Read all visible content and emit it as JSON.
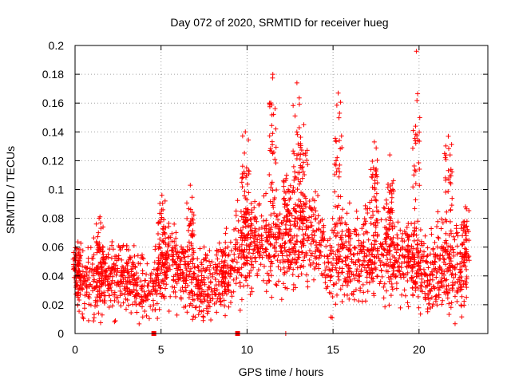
{
  "chart_data": {
    "type": "scatter",
    "title": "Day 072 of 2020, SRMTID for receiver hueg",
    "xlabel": "GPS time / hours",
    "ylabel": "SRMTID / TECUs",
    "xlim": [
      0,
      24
    ],
    "ylim": [
      0,
      0.2
    ],
    "xticks": [
      0,
      5,
      10,
      15,
      20
    ],
    "xtick_labels": [
      "0",
      "5",
      "10",
      "15",
      "20"
    ],
    "yticks": [
      0,
      0.02,
      0.04,
      0.06,
      0.08,
      0.1,
      0.12,
      0.14,
      0.16,
      0.18,
      0.2
    ],
    "ytick_labels": [
      "0",
      "0.02",
      "0.04",
      "0.06",
      "0.08",
      "0.1",
      "0.12",
      "0.14",
      "0.16",
      "0.18",
      "0.2"
    ],
    "grid": true,
    "marker_color": "#ff0000",
    "series": [
      {
        "name": "SRMTID",
        "marker": "plus",
        "profile": [
          {
            "t": 0.0,
            "mean": 0.036,
            "spread": 0.022
          },
          {
            "t": 1.0,
            "mean": 0.038,
            "spread": 0.026
          },
          {
            "t": 2.0,
            "mean": 0.037,
            "spread": 0.024
          },
          {
            "t": 3.0,
            "mean": 0.036,
            "spread": 0.025
          },
          {
            "t": 4.0,
            "mean": 0.034,
            "spread": 0.024
          },
          {
            "t": 4.5,
            "mean": 0.028,
            "spread": 0.018
          },
          {
            "t": 5.0,
            "mean": 0.043,
            "spread": 0.024
          },
          {
            "t": 5.5,
            "mean": 0.052,
            "spread": 0.026
          },
          {
            "t": 6.0,
            "mean": 0.046,
            "spread": 0.026
          },
          {
            "t": 6.5,
            "mean": 0.038,
            "spread": 0.026
          },
          {
            "t": 7.0,
            "mean": 0.035,
            "spread": 0.024
          },
          {
            "t": 8.0,
            "mean": 0.033,
            "spread": 0.024
          },
          {
            "t": 9.0,
            "mean": 0.046,
            "spread": 0.026
          },
          {
            "t": 9.5,
            "mean": 0.055,
            "spread": 0.028
          },
          {
            "t": 10.0,
            "mean": 0.062,
            "spread": 0.03
          },
          {
            "t": 11.0,
            "mean": 0.064,
            "spread": 0.03
          },
          {
            "t": 12.0,
            "mean": 0.06,
            "spread": 0.032
          },
          {
            "t": 13.0,
            "mean": 0.066,
            "spread": 0.032
          },
          {
            "t": 14.0,
            "mean": 0.066,
            "spread": 0.03
          },
          {
            "t": 14.8,
            "mean": 0.048,
            "spread": 0.03
          },
          {
            "t": 15.5,
            "mean": 0.052,
            "spread": 0.03
          },
          {
            "t": 16.5,
            "mean": 0.054,
            "spread": 0.028
          },
          {
            "t": 17.5,
            "mean": 0.058,
            "spread": 0.03
          },
          {
            "t": 18.5,
            "mean": 0.056,
            "spread": 0.028
          },
          {
            "t": 19.5,
            "mean": 0.05,
            "spread": 0.03
          },
          {
            "t": 20.5,
            "mean": 0.04,
            "spread": 0.026
          },
          {
            "t": 21.5,
            "mean": 0.044,
            "spread": 0.028
          },
          {
            "t": 22.7,
            "mean": 0.046,
            "spread": 0.028
          }
        ],
        "time_range": [
          0.0,
          22.8
        ],
        "bursts": [
          {
            "t": 0.1,
            "peak": 0.059
          },
          {
            "t": 1.45,
            "peak": 0.081
          },
          {
            "t": 5.05,
            "peak": 0.096
          },
          {
            "t": 6.7,
            "peak": 0.103
          },
          {
            "t": 9.9,
            "peak": 0.14
          },
          {
            "t": 11.5,
            "peak": 0.18
          },
          {
            "t": 12.3,
            "peak": 0.11
          },
          {
            "t": 12.9,
            "peak": 0.174
          },
          {
            "t": 13.3,
            "peak": 0.145
          },
          {
            "t": 15.3,
            "peak": 0.167
          },
          {
            "t": 17.4,
            "peak": 0.133
          },
          {
            "t": 18.3,
            "peak": 0.124
          },
          {
            "t": 19.85,
            "peak": 0.196
          },
          {
            "t": 21.7,
            "peak": 0.137
          },
          {
            "t": 22.7,
            "peak": 0.088
          }
        ],
        "outliers": [
          {
            "x": 4.58,
            "y": 0.0
          },
          {
            "x": 9.45,
            "y": 0.0
          },
          {
            "x": 12.25,
            "y": 0.0
          },
          {
            "x": 14.95,
            "y": 0.011
          },
          {
            "x": 7.45,
            "y": 0.009
          }
        ],
        "seed": 72
      }
    ]
  }
}
